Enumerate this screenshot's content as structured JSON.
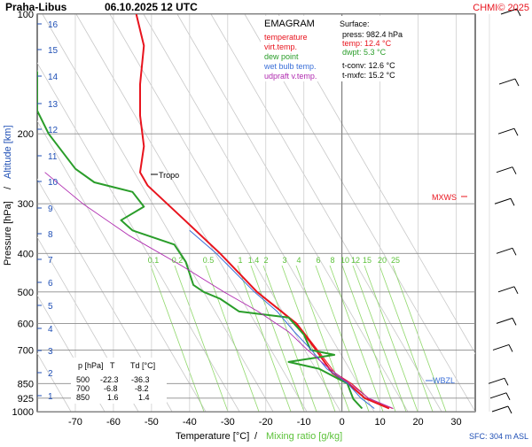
{
  "header": {
    "station": "Praha-Libus",
    "datetime": "06.10.2025 12 UTC",
    "credit": "CHMI© 2025"
  },
  "legend": {
    "title": "EMAGRAM",
    "items": [
      {
        "label": "temperature",
        "color": "#e8141e"
      },
      {
        "label": "virt.temp.",
        "color": "#e8141e"
      },
      {
        "label": "dew point",
        "color": "#2a9d2a"
      },
      {
        "label": "wet bulb temp.",
        "color": "#3a6fd8"
      },
      {
        "label": "udpraft v.temp.",
        "color": "#b02bb0"
      }
    ]
  },
  "surface": {
    "title": "Surface:",
    "press": "press: 982.4 hPa",
    "temp": "temp: 12.4 °C",
    "dwpt": "dwpt: 5.3 °C",
    "tconv": "t-conv: 12.6 °C",
    "tmxfc": "t-mxfc: 15.2 °C"
  },
  "table": {
    "headers": [
      "p [hPa]",
      "T",
      "Td [°C]"
    ],
    "rows": [
      [
        "500",
        "-22.3",
        "-36.3"
      ],
      [
        "700",
        "-6.8",
        "-8.2"
      ],
      [
        "850",
        "1.6",
        "1.4"
      ]
    ]
  },
  "axis_labels": {
    "y_left_a": "Pressure [hPa]",
    "y_left_sep": "/",
    "y_left_b": "Altitude [km]",
    "x_a": "Temperature [°C]",
    "x_sep": "/",
    "x_b": "Mixing ratio [g/kg]"
  },
  "annotations": {
    "tropo": "Tropo",
    "mxws": "MXWS",
    "wbzl": "WBZL",
    "sfc": "SFC: 304 m ASL"
  },
  "chart_data": {
    "type": "line",
    "title": "Praha-Libus 06.10.2025 12 UTC",
    "xlabel": "Temperature [°C] / Mixing ratio [g/kg]",
    "ylabel": "Pressure [hPa] / Altitude [km]",
    "x_scale": "linear",
    "y_scale": "log",
    "xlim": [
      -80,
      35
    ],
    "ylim": [
      1000,
      100
    ],
    "x_ticks": [
      -70,
      -60,
      -50,
      -40,
      -30,
      -20,
      -10,
      0,
      10,
      20,
      30
    ],
    "p_ticks": [
      100,
      200,
      300,
      400,
      500,
      600,
      700,
      850,
      925,
      1000
    ],
    "altitude_ticks_km": [
      1,
      2,
      3,
      4,
      5,
      6,
      7,
      8,
      9,
      10,
      11,
      12,
      13,
      14,
      15,
      16
    ],
    "mixing_ratio_labels": [
      "0.1",
      "0.2",
      "0.5",
      "1",
      "1.4",
      "2",
      "3",
      "4",
      "6",
      "8",
      "10",
      "12",
      "15",
      "20",
      "25"
    ],
    "grid": true,
    "legend_position": "top-center",
    "series": [
      {
        "name": "temperature",
        "color": "#e8141e",
        "points": [
          [
            12.4,
            982
          ],
          [
            6,
            925
          ],
          [
            1.6,
            850
          ],
          [
            -2.5,
            800
          ],
          [
            -6.8,
            700
          ],
          [
            -12,
            600
          ],
          [
            -22.3,
            500
          ],
          [
            -32,
            400
          ],
          [
            -42,
            325
          ],
          [
            -51,
            270
          ],
          [
            -53,
            250
          ],
          [
            -52,
            215
          ],
          [
            -53,
            180
          ],
          [
            -53,
            150
          ],
          [
            -52,
            120
          ],
          [
            -54,
            100
          ]
        ]
      },
      {
        "name": "virt.temp.",
        "color": "#e8141e",
        "points": [
          [
            13.3,
            982
          ],
          [
            6.9,
            925
          ],
          [
            2.5,
            850
          ],
          [
            -1.8,
            800
          ],
          [
            -6.4,
            700
          ],
          [
            -11.8,
            600
          ],
          [
            -22.2,
            500
          ],
          [
            -32,
            400
          ],
          [
            -42,
            325
          ],
          [
            -51,
            270
          ],
          [
            -53,
            250
          ],
          [
            -52,
            215
          ],
          [
            -53,
            180
          ],
          [
            -53,
            150
          ],
          [
            -52,
            120
          ],
          [
            -54,
            100
          ]
        ]
      },
      {
        "name": "dew point",
        "color": "#2a9d2a",
        "points": [
          [
            5.3,
            982
          ],
          [
            3,
            930
          ],
          [
            1.4,
            850
          ],
          [
            -6,
            780
          ],
          [
            -14,
            750
          ],
          [
            -2,
            720
          ],
          [
            -8.2,
            700
          ],
          [
            -10,
            640
          ],
          [
            -14,
            580
          ],
          [
            -27,
            560
          ],
          [
            -32,
            520
          ],
          [
            -36.3,
            500
          ],
          [
            -39,
            480
          ],
          [
            -41,
            420
          ],
          [
            -44,
            380
          ],
          [
            -55,
            350
          ],
          [
            -58,
            330
          ],
          [
            -52,
            305
          ],
          [
            -55,
            280
          ],
          [
            -65,
            265
          ],
          [
            -70,
            245
          ],
          [
            -77,
            200
          ],
          [
            -80,
            175
          ],
          [
            -80,
            140
          ],
          [
            -82,
            125
          ]
        ]
      },
      {
        "name": "wet bulb temp.",
        "color": "#3a6fd8",
        "points": [
          [
            8.5,
            982
          ],
          [
            5,
            925
          ],
          [
            1.5,
            850
          ],
          [
            -4,
            780
          ],
          [
            -8,
            700
          ],
          [
            -12.5,
            630
          ],
          [
            -17,
            560
          ],
          [
            -23,
            500
          ],
          [
            -33,
            400
          ],
          [
            -40,
            350
          ]
        ]
      },
      {
        "name": "udpraft v.temp.",
        "color": "#b02bb0",
        "points": [
          [
            13.5,
            982
          ],
          [
            7,
            925
          ],
          [
            2,
            850
          ],
          [
            -4,
            770
          ],
          [
            -9,
            700
          ],
          [
            -14,
            630
          ],
          [
            -22,
            560
          ],
          [
            -31,
            500
          ],
          [
            -42,
            430
          ],
          [
            -56,
            360
          ],
          [
            -68,
            300
          ],
          [
            -78,
            250
          ]
        ]
      }
    ],
    "wind_levels_hpa": [
      1000,
      925,
      850,
      700,
      600,
      500,
      400,
      300,
      250,
      200,
      150,
      100
    ]
  }
}
